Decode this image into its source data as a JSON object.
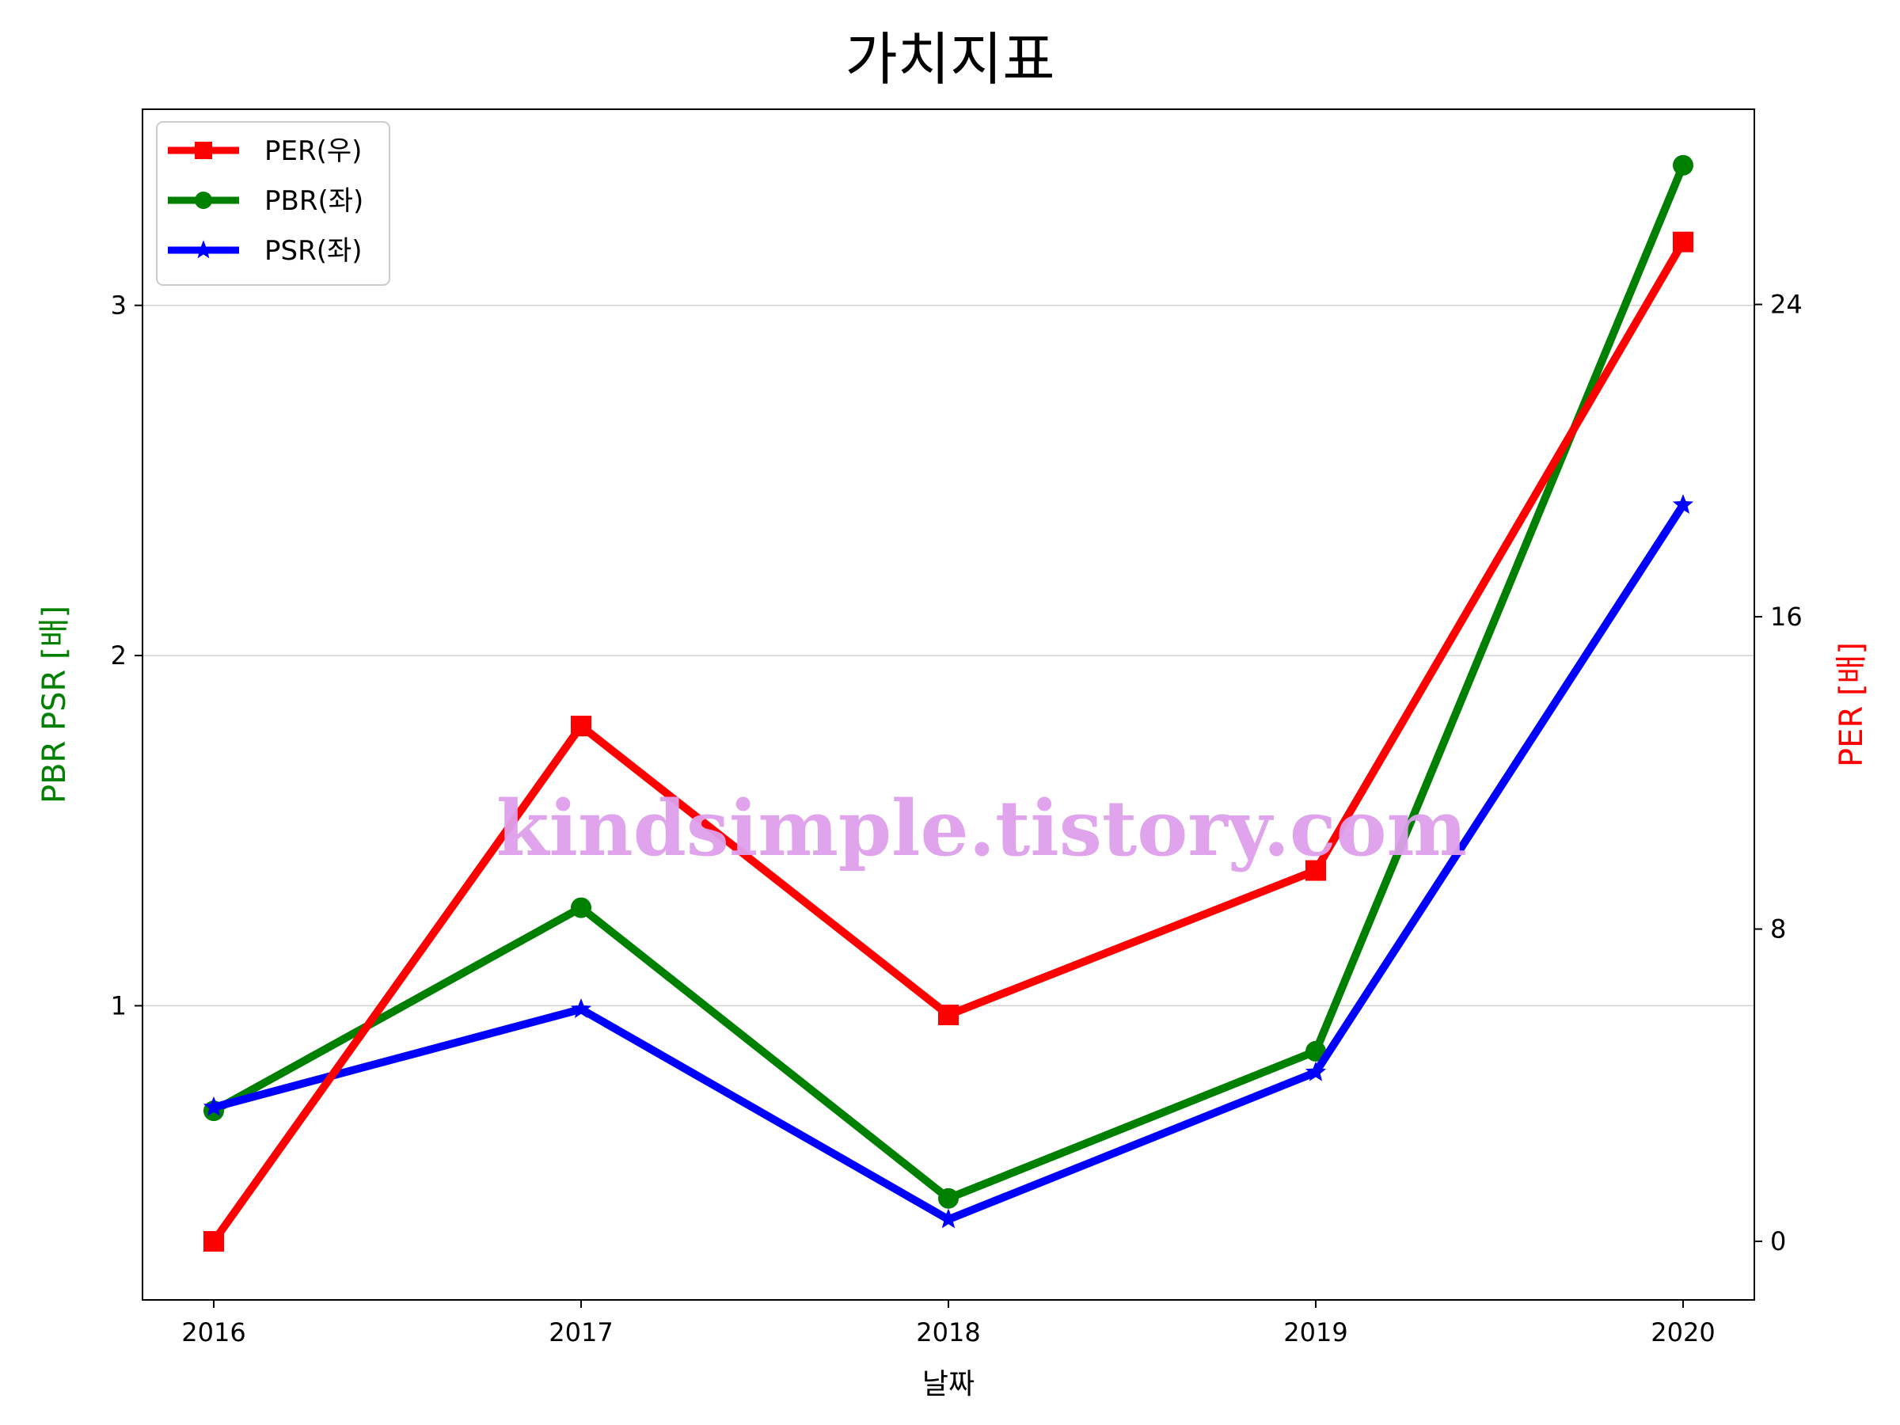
{
  "chart_data": {
    "type": "line",
    "title": "가치지표",
    "xlabel": "날짜",
    "ylabel_left": "PBR PSR [배]",
    "ylabel_right": "PER [배]",
    "categories": [
      "2016",
      "2017",
      "2018",
      "2019",
      "2020"
    ],
    "left_axis": {
      "ylim": [
        0.16,
        3.56
      ],
      "ticks": [
        1,
        2,
        3
      ]
    },
    "right_axis": {
      "ylim": [
        -1.5,
        29.0
      ],
      "ticks": [
        0,
        8,
        16,
        24
      ]
    },
    "series": [
      {
        "name": "PER(우)",
        "axis": "right",
        "color": "#ff0000",
        "marker": "square",
        "values": [
          0.0,
          13.2,
          5.8,
          9.5,
          25.6
        ]
      },
      {
        "name": "PBR(좌)",
        "axis": "left",
        "color": "#008000",
        "marker": "circle",
        "values": [
          0.7,
          1.28,
          0.45,
          0.87,
          3.4
        ]
      },
      {
        "name": "PSR(좌)",
        "axis": "left",
        "color": "#0000ff",
        "marker": "star",
        "values": [
          0.71,
          0.99,
          0.39,
          0.81,
          2.43
        ]
      }
    ],
    "grid": "horizontal",
    "legend_position": "top-left",
    "watermark": "kindsimple.tistory.com",
    "label_colors": {
      "left": "#008000",
      "right": "#ff0000"
    }
  }
}
